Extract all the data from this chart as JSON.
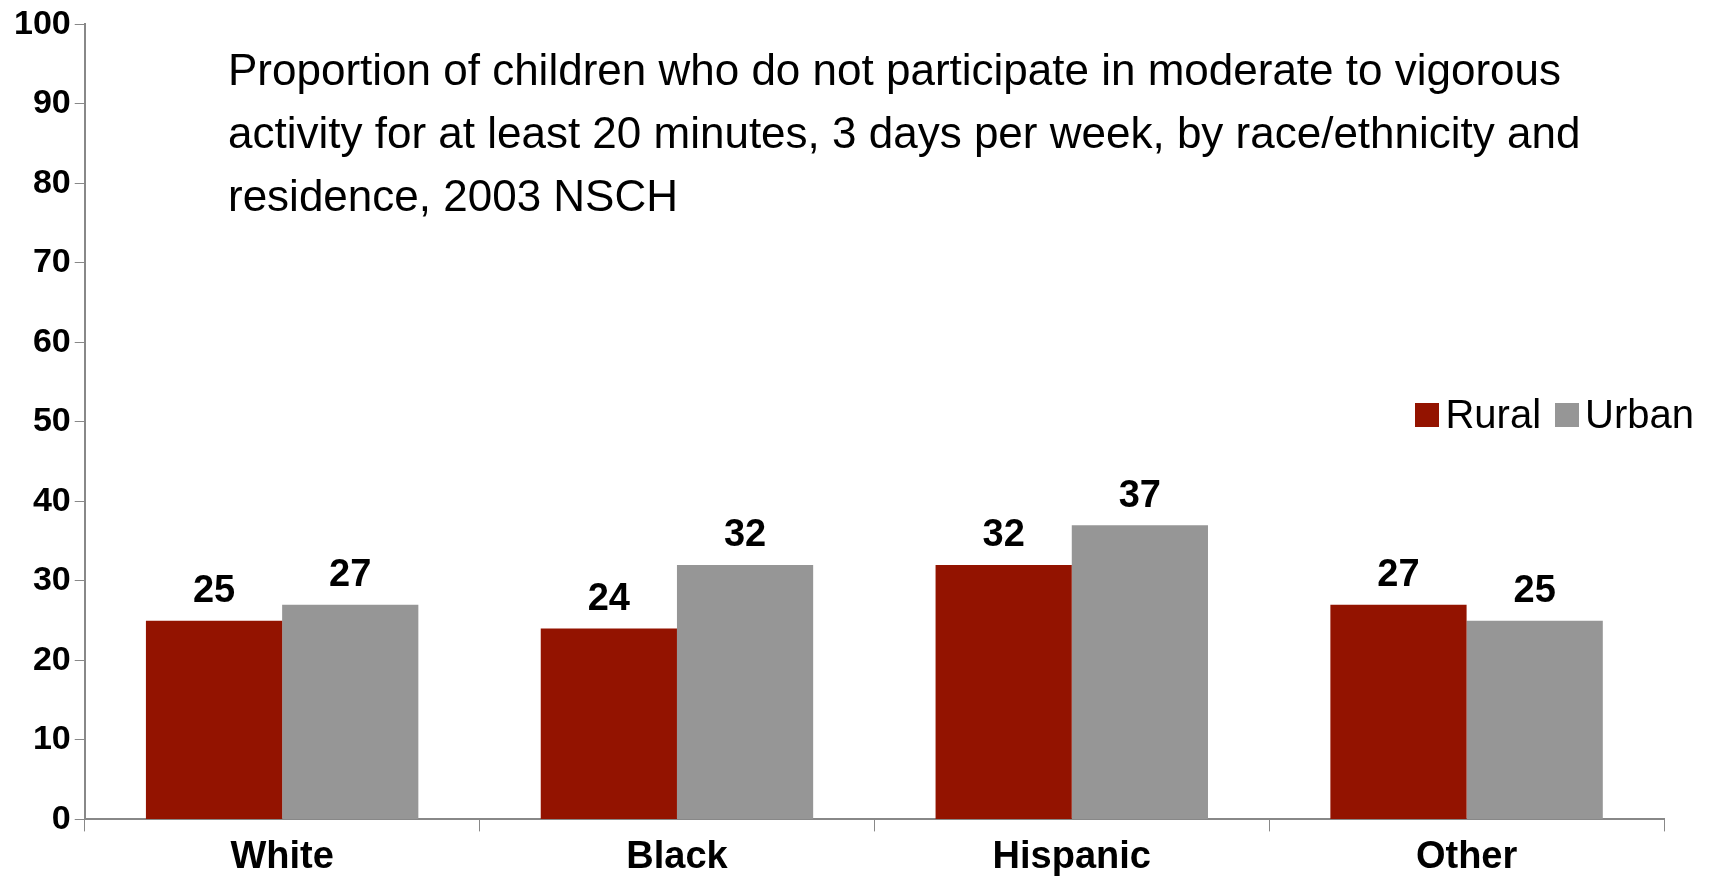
{
  "chart_data": {
    "type": "bar",
    "title": "Proportion of children who do not participate in moderate to vigorous activity for at least 20 minutes, 3 days per week, by race/ethnicity and residence, 2003 NSCH",
    "categories": [
      "White",
      "Black",
      "Hispanic",
      "Other"
    ],
    "series": [
      {
        "name": "Rural",
        "color": "#931300",
        "values": [
          25,
          24,
          32,
          27
        ]
      },
      {
        "name": "Urban",
        "color": "#969696",
        "values": [
          27,
          32,
          37,
          25
        ]
      }
    ],
    "ylim": [
      0,
      100
    ],
    "yticks": [
      0,
      10,
      20,
      30,
      40,
      50,
      60,
      70,
      80,
      90,
      100
    ],
    "grid": false,
    "legend": "right",
    "data_labels": true
  }
}
